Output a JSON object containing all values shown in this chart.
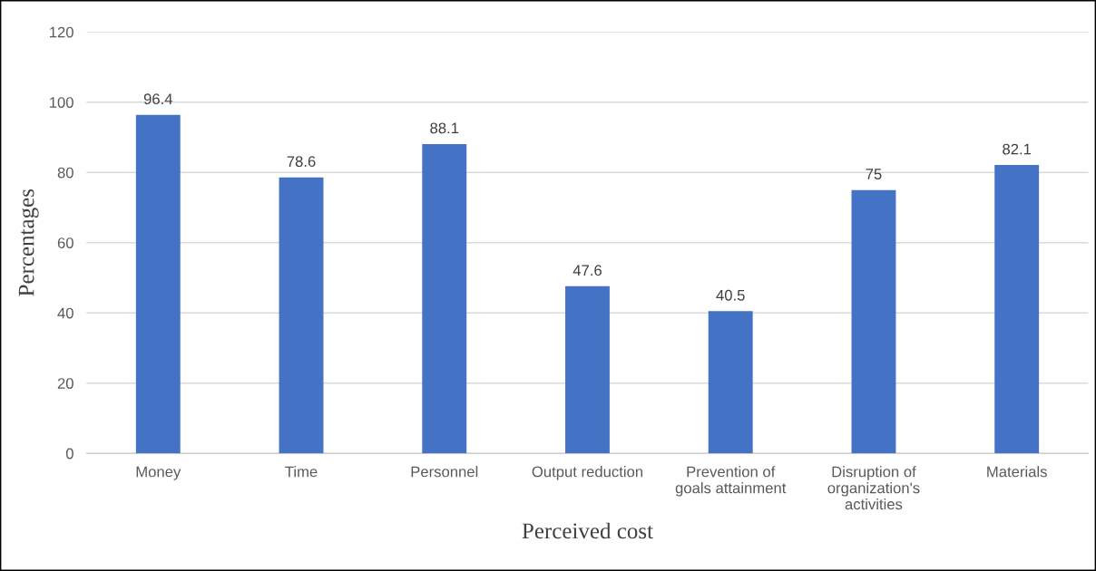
{
  "chart_data": {
    "type": "bar",
    "xlabel": "Perceived cost",
    "ylabel": "Percentages",
    "categories": [
      "Money",
      "Time",
      "Personnel",
      "Output reduction",
      "Prevention of\ngoals attainment",
      "Disruption of\norganization's\nactivities",
      "Materials"
    ],
    "values": [
      96.4,
      78.6,
      88.1,
      47.6,
      40.5,
      75,
      82.1
    ],
    "color": "#4472c4",
    "ylim": [
      0,
      120
    ],
    "yticks": [
      0,
      20,
      40,
      60,
      80,
      100,
      120
    ],
    "grid": "y",
    "data_labels": true
  }
}
